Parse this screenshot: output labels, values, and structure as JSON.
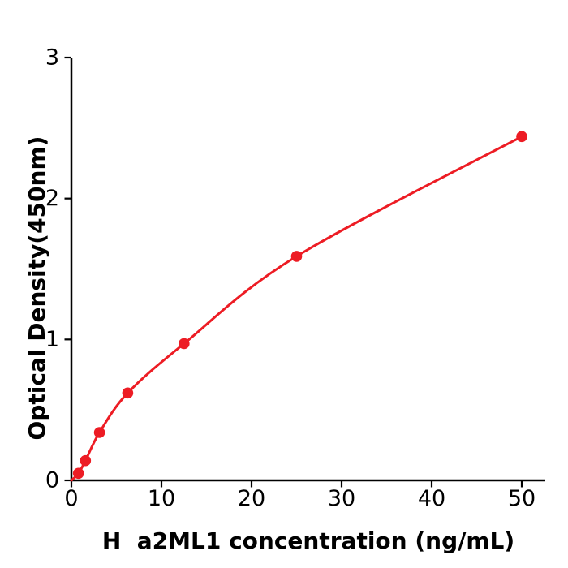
{
  "figure": {
    "background": "#ffffff",
    "axis_color": "#000000",
    "accent_red": "#ed1c24"
  },
  "chart_data": {
    "type": "scatter",
    "subtype": "elisa-standard-curve-with-fitted-line",
    "title": "",
    "xlabel": "H  a2ML1 concentration (ng/mL)",
    "ylabel": "Optical Density(450nm)",
    "series": [
      {
        "name": "H a2ML1 standard",
        "x": [
          0.78,
          1.56,
          3.12,
          6.25,
          12.5,
          25,
          50
        ],
        "y": [
          0.05,
          0.14,
          0.34,
          0.62,
          0.97,
          1.59,
          2.44
        ],
        "marker": "circle",
        "color": "#ed1c24",
        "fit_line": true,
        "fit_through_origin": true
      }
    ],
    "xlim": [
      0,
      52.6
    ],
    "ylim": [
      0,
      3
    ],
    "x_ticks": [
      "0",
      "10",
      "20",
      "30",
      "40",
      "50"
    ],
    "y_ticks": [
      "0",
      "1",
      "2",
      "3"
    ],
    "grid": false,
    "legend": null
  }
}
